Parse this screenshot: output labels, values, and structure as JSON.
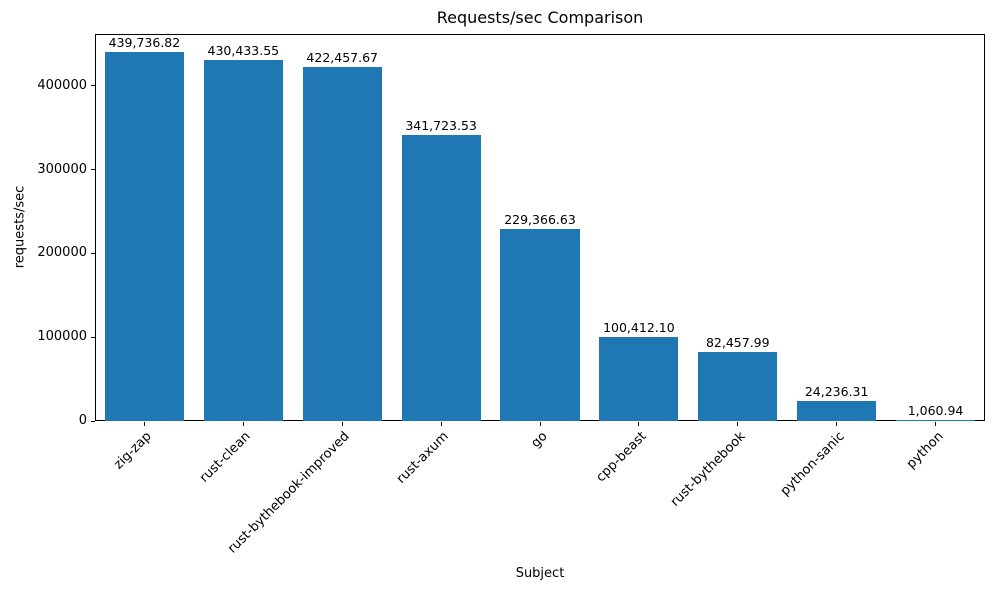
{
  "chart_data": {
    "type": "bar",
    "title": "Requests/sec Comparison",
    "xlabel": "Subject",
    "ylabel": "requests/sec",
    "categories": [
      "zig-zap",
      "rust-clean",
      "rust-bythebook-improved",
      "rust-axum",
      "go",
      "cpp-beast",
      "rust-bythebook",
      "python-sanic",
      "python"
    ],
    "values": [
      439736.82,
      430433.55,
      422457.67,
      341723.53,
      229366.63,
      100412.1,
      82457.99,
      24236.31,
      1060.94
    ],
    "value_labels": [
      "439,736.82",
      "430,433.55",
      "422,457.67",
      "341,723.53",
      "229,366.63",
      "100,412.10",
      "82,457.99",
      "24,236.31",
      "1,060.94"
    ],
    "ylim": [
      0,
      461724
    ],
    "yticks": [
      0,
      100000,
      200000,
      300000,
      400000
    ],
    "ytick_labels": [
      "0",
      "100000",
      "200000",
      "300000",
      "400000"
    ],
    "bar_color": "#1f77b4",
    "grid": false,
    "legend_position": "none"
  }
}
